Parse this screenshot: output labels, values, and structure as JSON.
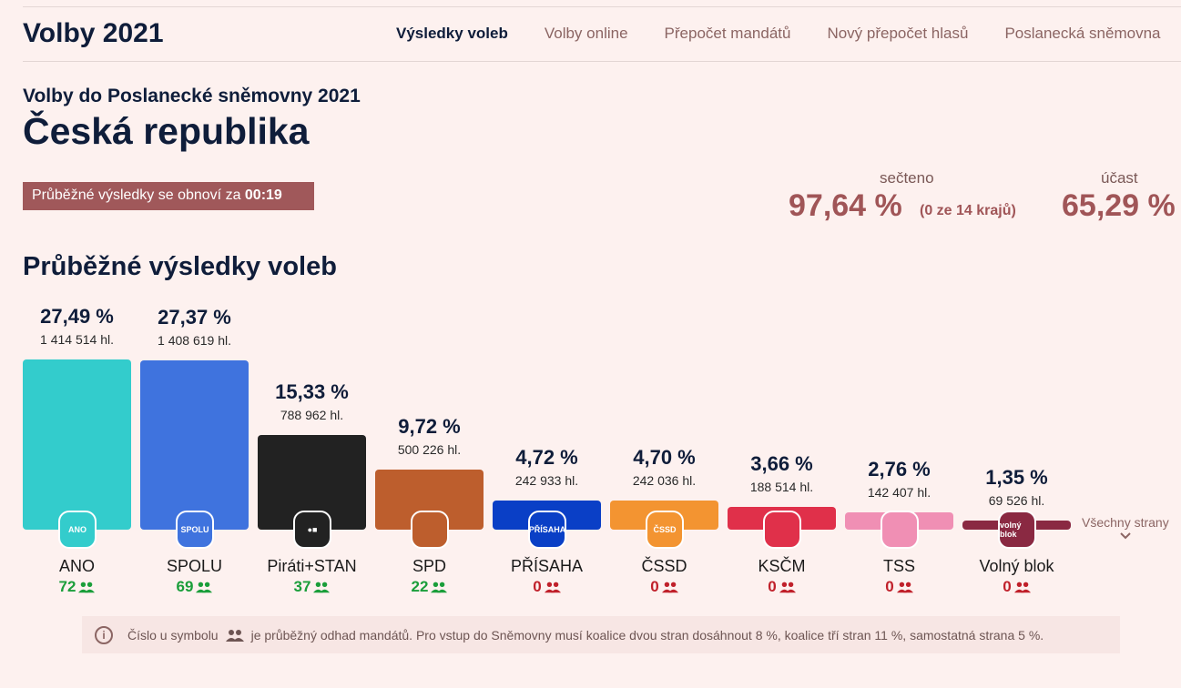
{
  "header": {
    "brand": "Volby 2021",
    "nav": [
      "Výsledky voleb",
      "Volby online",
      "Přepočet mandátů",
      "Nový přepočet hlasů",
      "Poslanecká sněmovna"
    ]
  },
  "page": {
    "subtitle": "Volby do Poslanecké sněmovny 2021",
    "title": "Česká republika",
    "refresh_text": "Průběžné výsledky se obnoví za ",
    "refresh_time": "00:19",
    "counted_label": "sečteno",
    "counted_value": "97,64 %",
    "counted_note": "(0 ze 14 krajů)",
    "turnout_label": "účast",
    "turnout_value": "65,29 %",
    "section_title": "Průběžné výsledky voleb",
    "all_parties": "Všechny strany",
    "info_before": "Číslo u symbolu",
    "info_after": "je průběžný odhad mandátů. Pro vstup do Sněmovny musí koalice dvou stran dosáhnout 8 %, koalice tří stran 11 %, samostatná strana 5 %."
  },
  "colors": {
    "accent": "#a05557",
    "passed": "#1a9e3a",
    "failed": "#c0202a"
  },
  "chart_data": {
    "type": "bar",
    "categories": [
      "ANO",
      "SPOLU",
      "Piráti+STAN",
      "SPD",
      "PŘÍSAHA",
      "ČSSD",
      "KSČM",
      "TSS",
      "Volný blok"
    ],
    "values": [
      27.49,
      27.37,
      15.33,
      9.72,
      4.72,
      4.7,
      3.66,
      2.76,
      1.35
    ],
    "labels": [
      "27,49 %",
      "27,37 %",
      "15,33 %",
      "9,72 %",
      "4,72 %",
      "4,70 %",
      "3,66 %",
      "2,76 %",
      "1,35 %"
    ],
    "votes": [
      "1 414 514 hl.",
      "1 408 619 hl.",
      "788 962 hl.",
      "500 226 hl.",
      "242 933 hl.",
      "242 036 hl.",
      "188 514 hl.",
      "142 407 hl.",
      "69 526 hl."
    ],
    "seats": [
      72,
      69,
      37,
      22,
      0,
      0,
      0,
      0,
      0
    ],
    "colors": [
      "#33cccc",
      "#3f73de",
      "#222222",
      "#bd5e2d",
      "#0a3fc6",
      "#f39431",
      "#e0304a",
      "#f08fb4",
      "#8a2942"
    ],
    "logos": [
      "ANO",
      "SPOLU",
      "●■",
      "",
      "PŘÍSAHA",
      "ČSSD",
      "",
      "",
      "volný blok"
    ]
  }
}
